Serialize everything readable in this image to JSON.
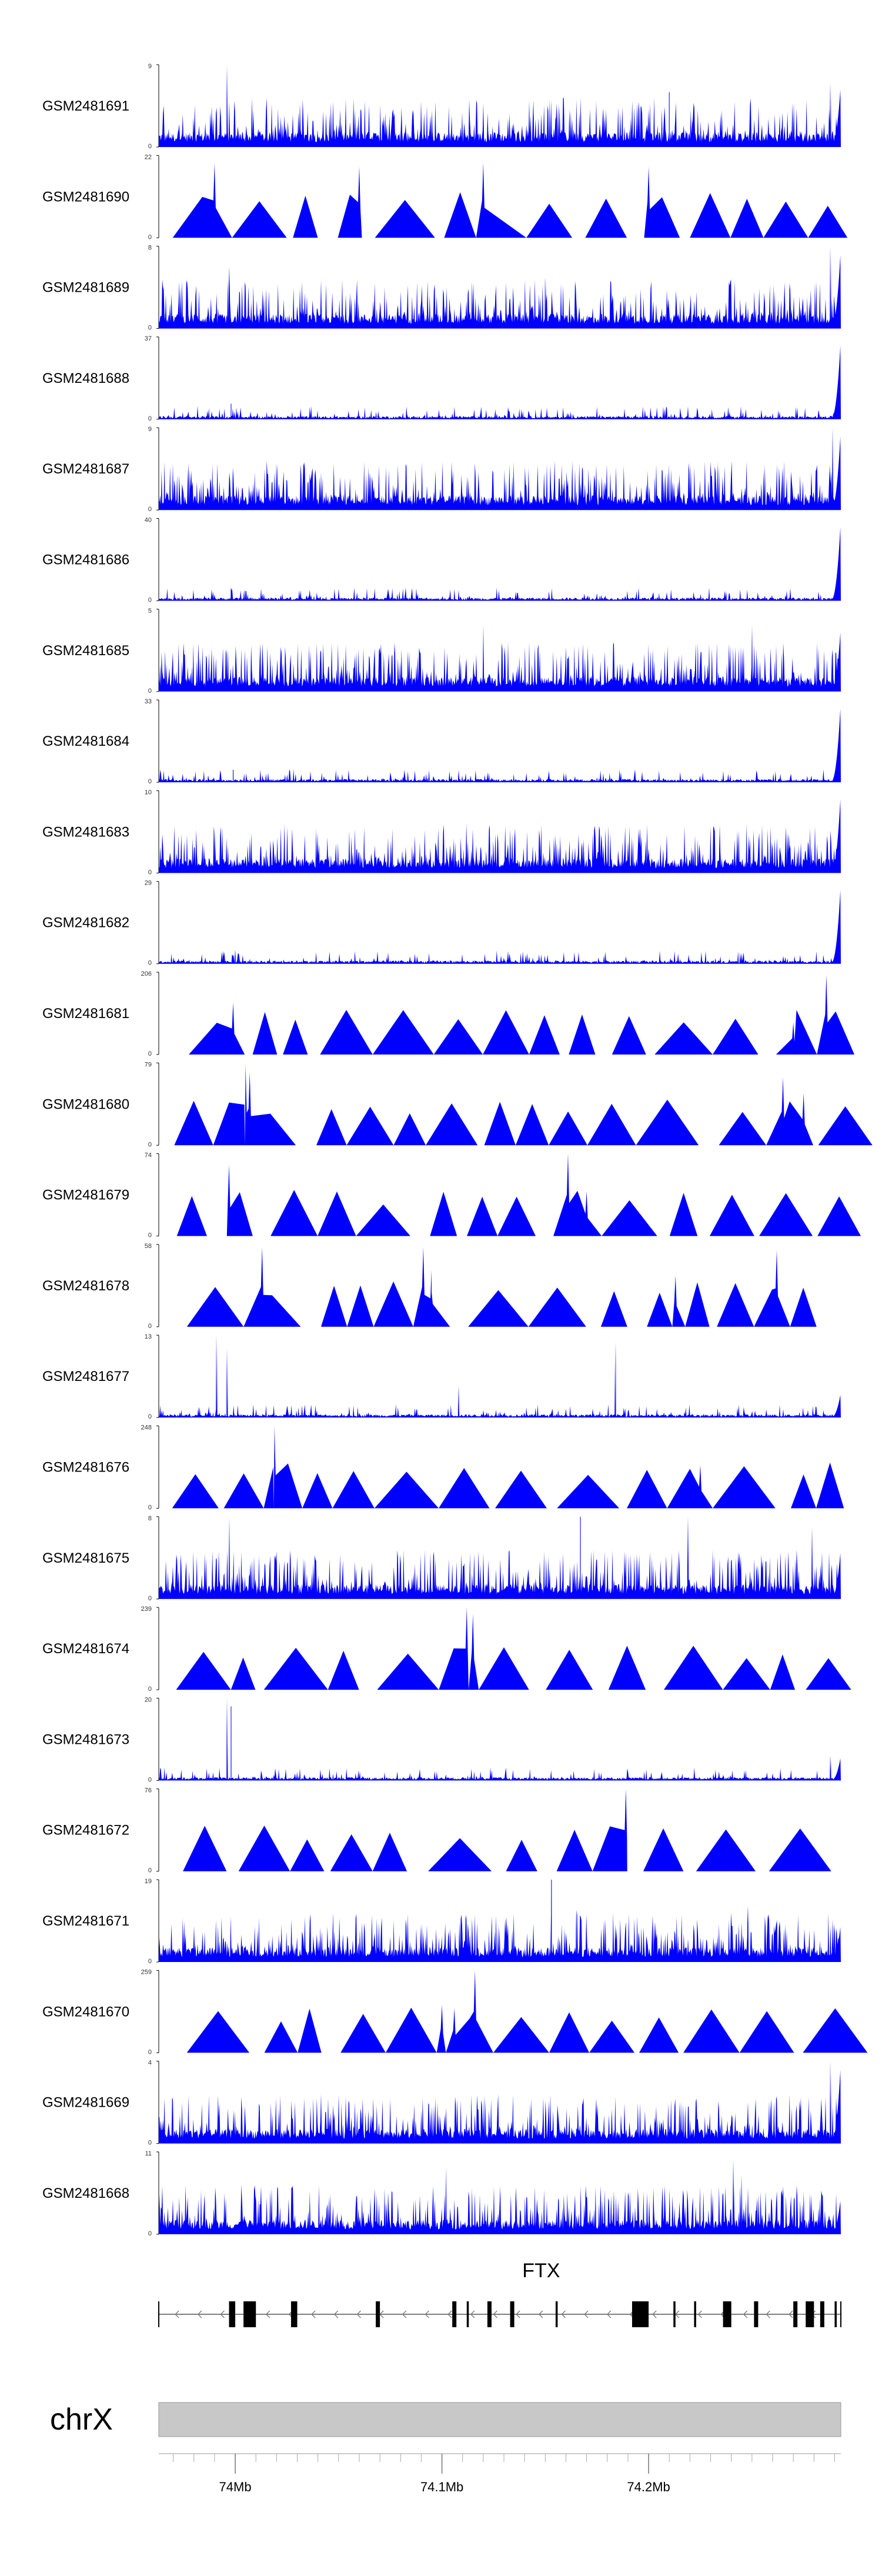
{
  "chart_data": {
    "type": "area",
    "chromosome": "chrX",
    "x_unit": "Mb",
    "xlim": [
      73.963,
      74.293
    ],
    "color": "#0000FF",
    "tracks": [
      {
        "name": "GSM2481691",
        "ymin": "0",
        "ymax": "9",
        "ymax_value": 9,
        "pattern": "dense",
        "peaks": [
          [
            73.996,
            9
          ],
          [
            74.09,
            5
          ],
          [
            74.21,
            6
          ],
          [
            74.288,
            7
          ]
        ],
        "tail": 7
      },
      {
        "name": "GSM2481690",
        "ymin": "0",
        "ymax": "22",
        "ymax_value": 22,
        "pattern": "triangles",
        "peaks": [
          [
            73.99,
            20
          ],
          [
            74.06,
            19
          ],
          [
            74.12,
            20
          ],
          [
            74.2,
            19
          ]
        ],
        "tail": 0,
        "gaps": [
          [
            74.108,
            74.135
          ]
        ]
      },
      {
        "name": "GSM2481689",
        "ymin": "0",
        "ymax": "8",
        "ymax_value": 8,
        "pattern": "dense",
        "peaks": [
          [
            73.997,
            6
          ],
          [
            74.15,
            5
          ],
          [
            74.288,
            8
          ]
        ],
        "tail": 8
      },
      {
        "name": "GSM2481688",
        "ymin": "0",
        "ymax": "37",
        "ymax_value": 37,
        "pattern": "sparse",
        "peaks": [
          [
            73.998,
            7
          ]
        ],
        "tail": 37
      },
      {
        "name": "GSM2481687",
        "ymin": "0",
        "ymax": "9",
        "ymax_value": 9,
        "pattern": "dense",
        "peaks": [
          [
            74.02,
            5
          ],
          [
            74.289,
            9
          ]
        ],
        "tail": 9
      },
      {
        "name": "GSM2481686",
        "ymin": "0",
        "ymax": "40",
        "ymax_value": 40,
        "pattern": "sparse",
        "peaks": [
          [
            73.998,
            6
          ]
        ],
        "tail": 40
      },
      {
        "name": "GSM2481685",
        "ymin": "0",
        "ymax": "5",
        "ymax_value": 5,
        "pattern": "dense",
        "peaks": [
          [
            74.12,
            4
          ],
          [
            74.25,
            4
          ]
        ],
        "tail": 4
      },
      {
        "name": "GSM2481684",
        "ymin": "0",
        "ymax": "33",
        "ymax_value": 33,
        "pattern": "sparse",
        "peaks": [
          [
            73.999,
            5
          ]
        ],
        "tail": 33
      },
      {
        "name": "GSM2481683",
        "ymin": "0",
        "ymax": "10",
        "ymax_value": 10,
        "pattern": "dense",
        "peaks": [
          [
            73.99,
            5
          ],
          [
            74.015,
            3
          ],
          [
            74.2,
            3
          ]
        ],
        "tail": 10
      },
      {
        "name": "GSM2481682",
        "ymin": "0",
        "ymax": "29",
        "ymax_value": 29,
        "pattern": "sparse",
        "peaks": [
          [
            74.0,
            5
          ]
        ],
        "tail": 29
      },
      {
        "name": "GSM2481681",
        "ymin": "0",
        "ymax": "206",
        "ymax_value": 206,
        "pattern": "triangles",
        "peaks": [
          [
            73.999,
            130
          ],
          [
            74.286,
            200
          ],
          [
            74.27,
            80
          ]
        ],
        "tail": 0
      },
      {
        "name": "GSM2481680",
        "ymin": "0",
        "ymax": "79",
        "ymax_value": 79,
        "pattern": "triangles",
        "peaks": [
          [
            74.005,
            78
          ],
          [
            74.007,
            70
          ],
          [
            74.265,
            65
          ],
          [
            74.275,
            50
          ]
        ],
        "tail": 0
      },
      {
        "name": "GSM2481679",
        "ymin": "0",
        "ymax": "74",
        "ymax_value": 74,
        "pattern": "triangles",
        "peaks": [
          [
            73.997,
            64
          ],
          [
            74.161,
            74
          ],
          [
            74.17,
            40
          ]
        ],
        "tail": 0
      },
      {
        "name": "GSM2481678",
        "ymin": "0",
        "ymax": "58",
        "ymax_value": 58,
        "pattern": "triangles",
        "peaks": [
          [
            74.013,
            56
          ],
          [
            74.091,
            56
          ],
          [
            74.095,
            40
          ],
          [
            74.213,
            36
          ],
          [
            74.262,
            54
          ]
        ],
        "tail": 0
      },
      {
        "name": "GSM2481677",
        "ymin": "0",
        "ymax": "13",
        "ymax_value": 13,
        "pattern": "sparse",
        "peaks": [
          [
            73.991,
            13
          ],
          [
            73.996,
            11
          ],
          [
            74.108,
            5
          ],
          [
            74.184,
            12
          ]
        ],
        "tail": 4
      },
      {
        "name": "GSM2481676",
        "ymin": "0",
        "ymax": "248",
        "ymax_value": 248,
        "pattern": "triangles",
        "peaks": [
          [
            74.019,
            248
          ],
          [
            74.225,
            130
          ]
        ],
        "tail": 0
      },
      {
        "name": "GSM2481675",
        "ymin": "0",
        "ymax": "8",
        "ymax_value": 8,
        "pattern": "dense",
        "peaks": [
          [
            73.997,
            8
          ],
          [
            74.167,
            8
          ],
          [
            74.219,
            8
          ],
          [
            74.279,
            7
          ]
        ],
        "tail": 5
      },
      {
        "name": "GSM2481674",
        "ymin": "0",
        "ymax": "239",
        "ymax_value": 239,
        "pattern": "triangles",
        "peaks": [
          [
            74.112,
            239
          ],
          [
            74.115,
            220
          ]
        ],
        "tail": 0
      },
      {
        "name": "GSM2481673",
        "ymin": "0",
        "ymax": "20",
        "ymax_value": 20,
        "pattern": "sparse",
        "peaks": [
          [
            73.996,
            20
          ],
          [
            73.998,
            18
          ],
          [
            74.288,
            6
          ]
        ],
        "tail": 6
      },
      {
        "name": "GSM2481672",
        "ymin": "0",
        "ymax": "76",
        "ymax_value": 76,
        "pattern": "triangles",
        "peaks": [
          [
            74.189,
            76
          ]
        ],
        "tail": 0
      },
      {
        "name": "GSM2481671",
        "ymin": "0",
        "ymax": "19",
        "ymax_value": 19,
        "pattern": "dense",
        "peaks": [
          [
            74.153,
            19
          ],
          [
            74.165,
            12
          ],
          [
            74.248,
            13
          ],
          [
            74.262,
            9
          ]
        ],
        "tail": 9
      },
      {
        "name": "GSM2481670",
        "ymin": "0",
        "ymax": "259",
        "ymax_value": 259,
        "pattern": "triangles",
        "peaks": [
          [
            74.116,
            259
          ],
          [
            74.1,
            150
          ],
          [
            74.106,
            140
          ]
        ],
        "tail": 0
      },
      {
        "name": "GSM2481669",
        "ymin": "0",
        "ymax": "4",
        "ymax_value": 4,
        "pattern": "dense",
        "peaks": [
          [
            74.288,
            4
          ]
        ],
        "tail": 4
      },
      {
        "name": "GSM2481668",
        "ymin": "0",
        "ymax": "11",
        "ymax_value": 11,
        "pattern": "dense",
        "peaks": [
          [
            74.102,
            9
          ],
          [
            74.241,
            10
          ],
          [
            74.245,
            8
          ]
        ],
        "tail": 5
      }
    ],
    "gene": {
      "name": "FTX",
      "strand": "-",
      "start": 73.963,
      "end": 74.293,
      "exons": [
        [
          73.997,
          74.0
        ],
        [
          74.004,
          74.01
        ],
        [
          74.027,
          74.03
        ],
        [
          74.068,
          74.07
        ],
        [
          74.105,
          74.107
        ],
        [
          74.112,
          74.113
        ],
        [
          74.122,
          74.124
        ],
        [
          74.133,
          74.135
        ],
        [
          74.155,
          74.156
        ],
        [
          74.192,
          74.2
        ],
        [
          74.212,
          74.213
        ],
        [
          74.222,
          74.223
        ],
        [
          74.236,
          74.24
        ],
        [
          74.251,
          74.253
        ],
        [
          74.27,
          74.272
        ],
        [
          74.276,
          74.28
        ],
        [
          74.283,
          74.285
        ],
        [
          74.29,
          74.291
        ]
      ]
    },
    "axis": {
      "ticks": [
        {
          "value": 74.0,
          "label": "74Mb"
        },
        {
          "value": 74.1,
          "label": "74.1Mb"
        },
        {
          "value": 74.2,
          "label": "74.2Mb"
        }
      ]
    }
  }
}
